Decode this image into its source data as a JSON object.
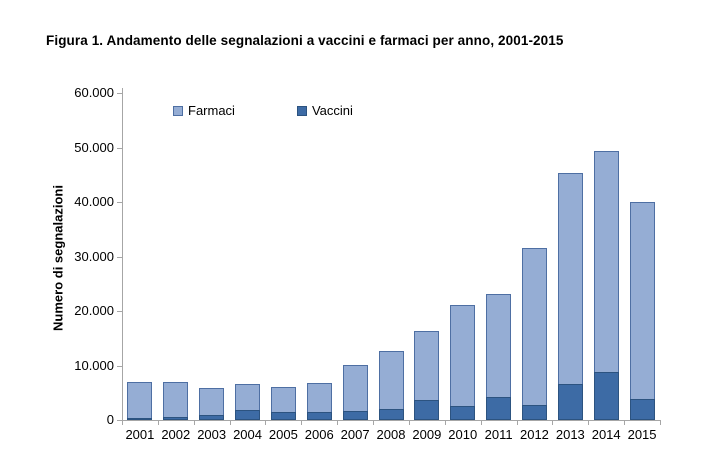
{
  "figure": {
    "title": "Figura 1. Andamento delle segnalazioni a vaccini e farmaci per anno, 2001-2015"
  },
  "colors": {
    "farmaci_fill": "#95add4",
    "farmaci_border": "#4e6fa3",
    "vaccini_fill": "#3d6ba5",
    "vaccini_border": "#2c5380",
    "axis": "#a6a6a6",
    "text": "#000000"
  },
  "chart_data": {
    "type": "bar",
    "stacked": true,
    "title": "Figura 1. Andamento delle segnalazioni a vaccini e farmaci per anno, 2001-2015",
    "xlabel": "",
    "ylabel": "Numero di segnalazioni",
    "ylim": [
      0,
      60000
    ],
    "ytick_interval": 10000,
    "ytick_labels": [
      "0",
      "10.000",
      "20.000",
      "30.000",
      "40.000",
      "50.000",
      "60.000"
    ],
    "grid": false,
    "legend_position": "top-inside",
    "legend": [
      {
        "label": "Farmaci"
      },
      {
        "label": "Vaccini"
      }
    ],
    "categories": [
      "2001",
      "2002",
      "2003",
      "2004",
      "2005",
      "2006",
      "2007",
      "2008",
      "2009",
      "2010",
      "2011",
      "2012",
      "2013",
      "2014",
      "2015"
    ],
    "series": [
      {
        "name": "Vaccini",
        "stack_order": "bottom",
        "values": [
          400,
          550,
          900,
          1800,
          1500,
          1550,
          1700,
          2100,
          3600,
          2600,
          4200,
          2800,
          6600,
          8800,
          3800
        ]
      },
      {
        "name": "Farmaci",
        "stack_order": "top",
        "values": [
          6600,
          6450,
          5000,
          4800,
          4600,
          5350,
          8400,
          10600,
          12700,
          18500,
          18900,
          28800,
          38700,
          40600,
          36200
        ]
      }
    ],
    "stack_totals": [
      7000,
      7000,
      5900,
      6600,
      6100,
      6900,
      10100,
      12700,
      16300,
      21100,
      23100,
      31600,
      45300,
      49400,
      40000
    ]
  }
}
